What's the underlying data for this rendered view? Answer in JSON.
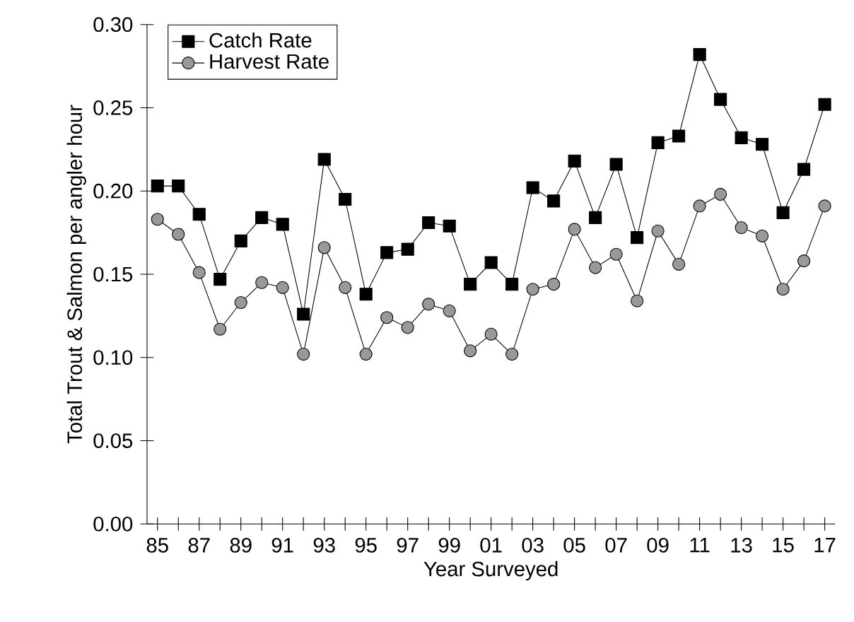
{
  "chart_data": {
    "type": "line",
    "xlabel": "Year Surveyed",
    "ylabel": "Total Trout & Salmon per angler hour",
    "categories": [
      "85",
      null,
      "87",
      null,
      "89",
      null,
      "91",
      null,
      "93",
      null,
      "95",
      null,
      "97",
      null,
      "99",
      null,
      "01",
      null,
      "03",
      null,
      "05",
      null,
      "07",
      null,
      "09",
      null,
      "11",
      null,
      "13",
      null,
      "15",
      null,
      "17"
    ],
    "series": [
      {
        "name": "Catch Rate",
        "color": "#000000",
        "marker": "square",
        "values": [
          0.203,
          0.203,
          0.186,
          0.147,
          0.17,
          0.184,
          0.18,
          0.126,
          0.219,
          0.195,
          0.138,
          0.163,
          0.165,
          0.181,
          0.179,
          0.144,
          0.157,
          0.144,
          0.202,
          0.194,
          0.218,
          0.184,
          0.216,
          0.172,
          0.229,
          0.233,
          0.282,
          0.255,
          0.232,
          0.228,
          0.187,
          0.213,
          0.252
        ]
      },
      {
        "name": "Harvest Rate",
        "color": "#999999",
        "marker": "circle",
        "values": [
          0.183,
          0.174,
          0.151,
          0.117,
          0.133,
          0.145,
          0.142,
          0.102,
          0.166,
          0.142,
          0.102,
          0.124,
          0.118,
          0.132,
          0.128,
          0.104,
          0.114,
          0.102,
          0.141,
          0.144,
          0.177,
          0.154,
          0.162,
          0.134,
          0.176,
          0.156,
          0.191,
          0.198,
          0.178,
          0.173,
          0.141,
          0.158,
          0.191
        ]
      }
    ],
    "ylim": [
      0,
      0.3
    ],
    "yticks": [
      {
        "value": 0,
        "label": "0.00"
      },
      {
        "value": 0.05,
        "label": "0.05"
      },
      {
        "value": 0.1,
        "label": "0.10"
      },
      {
        "value": 0.15,
        "label": "0.15"
      },
      {
        "value": 0.2,
        "label": "0.20"
      },
      {
        "value": 0.25,
        "label": "0.25"
      },
      {
        "value": 0.3,
        "label": "0.30"
      }
    ],
    "grid": false,
    "legend": "top left"
  }
}
